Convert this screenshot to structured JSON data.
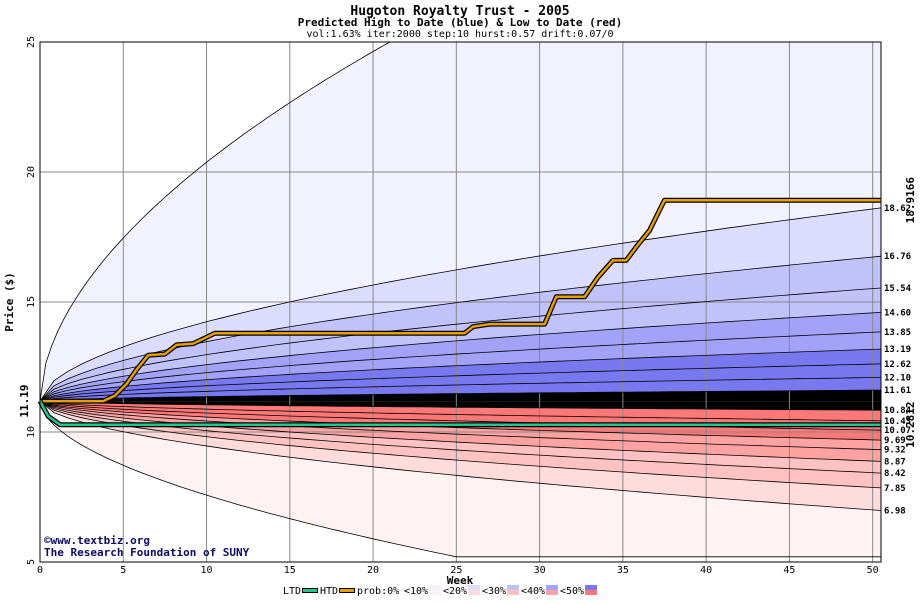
{
  "chart_data": {
    "type": "area",
    "title": "Hugoton Royalty Trust - 2005",
    "subtitle": "Predicted High to Date (blue) &  Low to Date (red)",
    "info": "vol:1.63% iter:2000 step:10 hurst:0.57 drift:0.07/0",
    "xlabel": "Week",
    "ylabel": "Price ($)",
    "xlim": [
      0,
      50.5
    ],
    "ylim": [
      5,
      25
    ],
    "xticks": [
      0,
      5,
      10,
      15,
      20,
      25,
      30,
      35,
      40,
      45,
      50
    ],
    "yticks": [
      5,
      10,
      15,
      20,
      25
    ],
    "grid": true,
    "start_price_label": "11.19",
    "start_price": 11.19,
    "htd_final_label": "18.9166",
    "ltd_final_label": "10.2812",
    "high_percentile_levels": [
      {
        "label": "18.62",
        "value": 18.62
      },
      {
        "label": "16.76",
        "value": 16.76
      },
      {
        "label": "15.54",
        "value": 15.54
      },
      {
        "label": "14.60",
        "value": 14.6
      },
      {
        "label": "13.85",
        "value": 13.85
      },
      {
        "label": "13.19",
        "value": 13.19
      },
      {
        "label": "12.62",
        "value": 12.62
      },
      {
        "label": "12.10",
        "value": 12.1
      },
      {
        "label": "11.61",
        "value": 11.61
      }
    ],
    "low_percentile_levels": [
      {
        "label": "10.84",
        "value": 10.84
      },
      {
        "label": "10.43",
        "value": 10.43
      },
      {
        "label": "10.07",
        "value": 10.07
      },
      {
        "label": "9.69",
        "value": 9.69
      },
      {
        "label": "9.32",
        "value": 9.32
      },
      {
        "label": "8.87",
        "value": 8.87
      },
      {
        "label": "8.42",
        "value": 8.42
      },
      {
        "label": "7.85",
        "value": 7.85
      },
      {
        "label": "6.98",
        "value": 6.98
      }
    ],
    "high_envelope_end": 25,
    "high_envelope_reach_week": 21,
    "low_envelope_end": 5.2,
    "low_envelope_reach_week": 25,
    "series": [
      {
        "name": "HTD",
        "color": "#e8a000",
        "x": [
          0,
          3.8,
          4.5,
          5.2,
          5.8,
          6.5,
          7.5,
          8.2,
          9.2,
          10.5,
          25.5,
          26,
          27,
          30.3,
          31,
          32.7,
          33.5,
          34.4,
          35.2,
          35.9,
          36.6,
          37.5,
          50.5
        ],
        "values": [
          11.19,
          11.19,
          11.4,
          11.85,
          12.4,
          12.95,
          13.0,
          13.35,
          13.4,
          13.8,
          13.8,
          14.05,
          14.15,
          14.15,
          15.2,
          15.2,
          15.95,
          16.6,
          16.6,
          17.2,
          17.75,
          18.9166,
          18.9166
        ]
      },
      {
        "name": "LTD",
        "color": "#20c890",
        "x": [
          0,
          0.5,
          1.2,
          50.5
        ],
        "values": [
          11.19,
          10.6,
          10.28,
          10.2812
        ]
      }
    ]
  },
  "credits": {
    "line1": "©www.textbiz.org",
    "line2": "The Research Foundation of SUNY"
  },
  "legend": {
    "items": [
      {
        "label": "LTD",
        "kind": "line",
        "color": "#20c890"
      },
      {
        "label": "HTD",
        "kind": "line",
        "color": "#e8a000"
      },
      {
        "label": "prob:0%",
        "kind": "text"
      },
      {
        "label": "<10%",
        "kind": "swatch",
        "blue": "#f2f2ff",
        "red": "#fff2f2"
      },
      {
        "label": "<20%",
        "kind": "swatch",
        "blue": "#dcdcff",
        "red": "#ffdcdc"
      },
      {
        "label": "<30%",
        "kind": "swatch",
        "blue": "#c2c2fa",
        "red": "#ffc2c2"
      },
      {
        "label": "<40%",
        "kind": "swatch",
        "blue": "#a2a2f8",
        "red": "#ffa2a2"
      },
      {
        "label": "<50%",
        "kind": "swatch",
        "blue": "#7878f0",
        "red": "#ff7878"
      }
    ]
  },
  "colors": {
    "blue_bands": [
      "#f2f2ff",
      "#dcdcff",
      "#c2c2fa",
      "#a2a2f8",
      "#7878f0"
    ],
    "red_bands": [
      "#fff2f2",
      "#ffdcdc",
      "#ffc2c2",
      "#ffa2a2",
      "#ff7878"
    ],
    "grid": "#888888",
    "htd_label": "#a07000",
    "ltd_label": "#00a070",
    "start_label": "#006600"
  }
}
